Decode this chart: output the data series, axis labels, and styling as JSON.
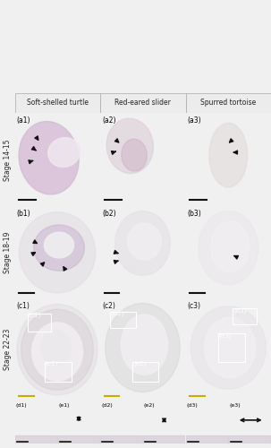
{
  "col_headers": [
    "Soft-shelled turtle",
    "Red-eared slider",
    "Spurred tortoise"
  ],
  "row_labels": [
    "Stage 14-15",
    "Stage 18-19",
    "Stage 22-23"
  ],
  "panel_labels_main": [
    [
      "(a1)",
      "(a2)",
      "(a3)"
    ],
    [
      "(b1)",
      "(b2)",
      "(b3)"
    ],
    [
      "(c1)",
      "(c2)",
      "(c3)"
    ]
  ],
  "panel_labels_sub": [
    [
      "(d1)",
      "(e1)",
      "(d2)",
      "(e2)",
      "(d3)",
      "(e3)"
    ]
  ],
  "bg_color": "#e8e0e8",
  "bg_color_light": "#f2eeee",
  "bg_color_lighter": "#f5f2f2",
  "header_bg": "#e8e8e8",
  "border_color": "#888888",
  "arrow_color": "#111111",
  "scale_bar_color": "#111111",
  "white_box_color": "#ffffff",
  "row_label_bg": "#f0f0f0"
}
